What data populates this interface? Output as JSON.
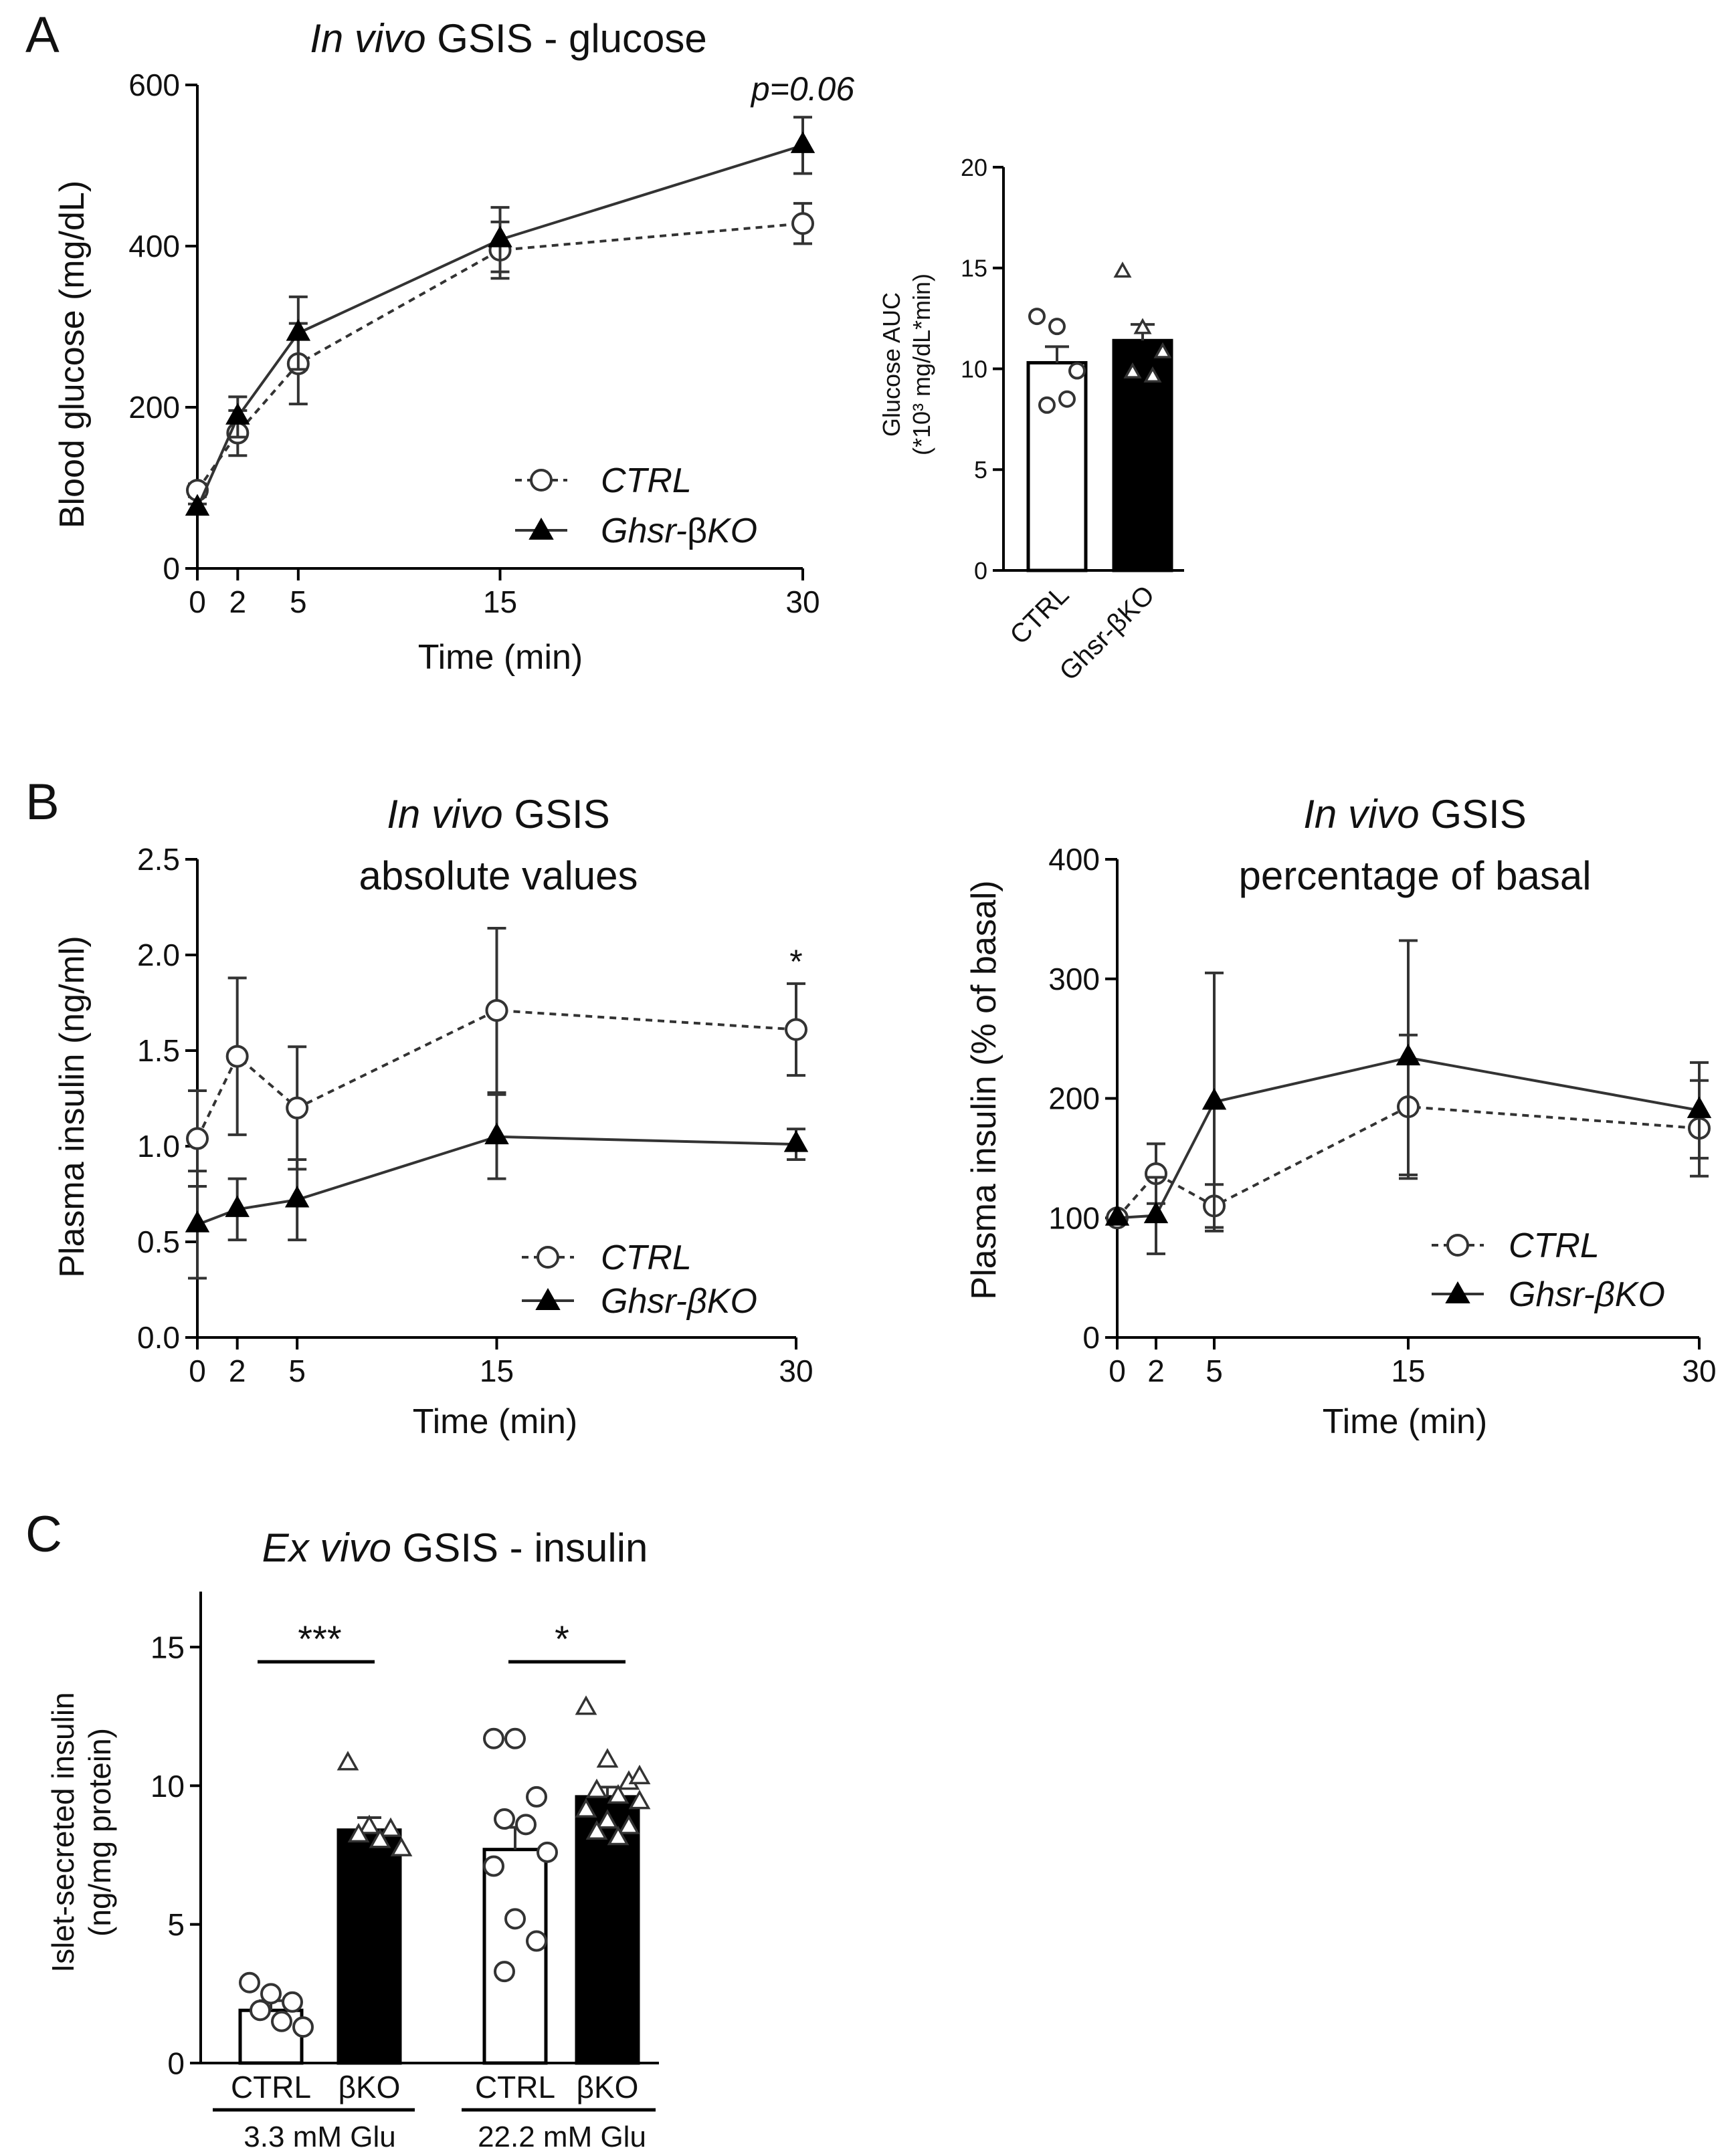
{
  "figure": {
    "panel_letters": [
      "A",
      "B",
      "C"
    ]
  },
  "legend": {
    "ctrl": "CTRL",
    "ko_prefix": "Ghsr-",
    "ko_beta": "β",
    "ko_suffix": "KO"
  },
  "colors": {
    "ink": "#000000",
    "line": "#333333",
    "background": "#ffffff"
  },
  "chart_data": [
    {
      "id": "A-line",
      "type": "line",
      "title_italic": "In vivo",
      "title_rest": " GSIS - glucose",
      "xlabel": "Time (min)",
      "ylabel": "Blood glucose (mg/dL)",
      "x": [
        0,
        2,
        5,
        15,
        30
      ],
      "xlim": [
        0,
        30
      ],
      "ylim": [
        0,
        600
      ],
      "yticks": [
        0,
        200,
        400,
        600
      ],
      "annotation": "p=0.06",
      "series": [
        {
          "name": "CTRL",
          "marker": "open-circle",
          "dash": true,
          "values": [
            97,
            168,
            254,
            395,
            428
          ],
          "err": [
            8,
            28,
            50,
            35,
            25
          ]
        },
        {
          "name": "Ghsr-βKO",
          "marker": "solid-triangle",
          "dash": false,
          "values": [
            75,
            188,
            292,
            408,
            525
          ],
          "err": [
            5,
            25,
            45,
            40,
            35
          ]
        }
      ],
      "legend_position": "bottom-right"
    },
    {
      "id": "A-bar",
      "type": "bar",
      "ylabel_line1": "Glucose AUC",
      "ylabel_line2": "(*10³ mg/dL*min)",
      "ylim": [
        0,
        20
      ],
      "yticks": [
        0,
        5,
        10,
        15,
        20
      ],
      "categories": [
        "CTRL",
        "Ghsr-βKO"
      ],
      "values": [
        10.3,
        11.4
      ],
      "err": [
        0.8,
        0.8
      ],
      "points": [
        [
          12.6,
          12.1,
          9.9,
          8.2,
          8.5
        ],
        [
          14.8,
          12.0,
          10.8,
          9.8,
          9.6
        ]
      ]
    },
    {
      "id": "B-abs",
      "type": "line",
      "title_italic": "In vivo",
      "title_rest": " GSIS",
      "title_line2": "absolute values",
      "xlabel": "Time (min)",
      "ylabel": "Plasma insulin (ng/ml)",
      "x": [
        0,
        2,
        5,
        15,
        30
      ],
      "xlim": [
        0,
        30
      ],
      "ylim": [
        0,
        2.5
      ],
      "yticks": [
        "0.0",
        "0.5",
        "1.0",
        "1.5",
        "2.0",
        "2.5"
      ],
      "annotation": "*",
      "series": [
        {
          "name": "CTRL",
          "marker": "open-circle",
          "dash": true,
          "values": [
            1.04,
            1.47,
            1.2,
            1.71,
            1.61
          ],
          "err": [
            0.25,
            0.41,
            0.32,
            0.43,
            0.24
          ]
        },
        {
          "name": "Ghsr-βKO",
          "marker": "solid-triangle",
          "dash": false,
          "values": [
            0.59,
            0.67,
            0.72,
            1.05,
            1.01
          ],
          "err": [
            0.28,
            0.16,
            0.21,
            0.22,
            0.08
          ]
        }
      ],
      "legend_position": "bottom-right"
    },
    {
      "id": "B-pct",
      "type": "line",
      "title_italic": "In vivo",
      "title_rest": " GSIS",
      "title_line2": "percentage of basal",
      "xlabel": "Time (min)",
      "ylabel": "Plasma insulin (% of basal)",
      "x": [
        0,
        2,
        5,
        15,
        30
      ],
      "xlim": [
        0,
        30
      ],
      "ylim": [
        0,
        400
      ],
      "yticks": [
        0,
        100,
        200,
        300,
        400
      ],
      "series": [
        {
          "name": "CTRL",
          "marker": "open-circle",
          "dash": true,
          "values": [
            100,
            137,
            110,
            193,
            175
          ],
          "err": [
            0,
            25,
            18,
            60,
            40
          ]
        },
        {
          "name": "Ghsr-βKO",
          "marker": "solid-triangle",
          "dash": false,
          "values": [
            100,
            102,
            197,
            234,
            190
          ],
          "err": [
            0,
            32,
            108,
            98,
            40
          ]
        }
      ],
      "legend_position": "bottom-right"
    },
    {
      "id": "C-bar",
      "type": "bar",
      "title_italic": "Ex vivo",
      "title_rest": " GSIS - insulin",
      "ylabel_line1": "Islet-secreted insulin",
      "ylabel_line2": "(ng/mg protein)",
      "ylim": [
        0,
        17
      ],
      "yticks": [
        0,
        5,
        10,
        15
      ],
      "categories": [
        "CTRL",
        "βKO",
        "CTRL",
        "βKO"
      ],
      "groups": [
        "3.3 mM Glu",
        "22.2 mM Glu"
      ],
      "values": [
        1.9,
        8.4,
        7.7,
        9.6
      ],
      "err": [
        0.35,
        0.45,
        0.8,
        0.35
      ],
      "points": [
        [
          2.9,
          2.5,
          2.2,
          1.9,
          1.5,
          1.3
        ],
        [
          10.8,
          8.5,
          8.4,
          8.2,
          8.0,
          7.7
        ],
        [
          11.7,
          11.7,
          9.6,
          8.8,
          8.6,
          7.6,
          7.1,
          5.2,
          4.4,
          3.3
        ],
        [
          12.8,
          10.9,
          10.1,
          9.8,
          9.6,
          9.4,
          9.1,
          8.7,
          8.5,
          8.3,
          8.1,
          10.3
        ]
      ],
      "significance": [
        "***",
        "*"
      ]
    }
  ]
}
